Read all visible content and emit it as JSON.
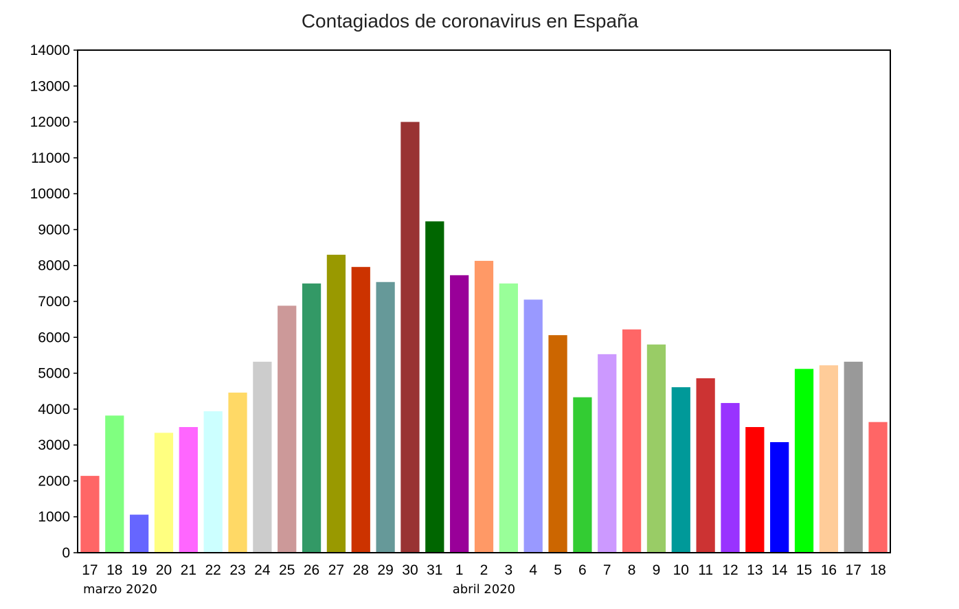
{
  "chart_data": {
    "type": "bar",
    "title": "Contagiados de coronavirus en España",
    "xlabel": "",
    "ylabel": "",
    "ylim": [
      0,
      14000
    ],
    "yticks": [
      0,
      1000,
      2000,
      3000,
      4000,
      5000,
      6000,
      7000,
      8000,
      9000,
      10000,
      11000,
      12000,
      13000,
      14000
    ],
    "grid": false,
    "legend": "none",
    "categories": [
      "17",
      "18",
      "19",
      "20",
      "21",
      "22",
      "23",
      "24",
      "25",
      "26",
      "27",
      "28",
      "29",
      "30",
      "31",
      "1",
      "2",
      "3",
      "4",
      "5",
      "6",
      "7",
      "8",
      "9",
      "10",
      "11",
      "12",
      "13",
      "14",
      "15",
      "16",
      "17",
      "18"
    ],
    "values": [
      2140,
      3820,
      1060,
      3340,
      3500,
      3940,
      4460,
      5320,
      6880,
      7500,
      8300,
      7960,
      7540,
      12000,
      9230,
      7730,
      8130,
      7500,
      7050,
      6060,
      4330,
      5530,
      6220,
      5800,
      4610,
      4860,
      4170,
      3500,
      3080,
      5120,
      5220,
      5320,
      3640
    ],
    "colors": [
      "#ff6666",
      "#80ff80",
      "#6666ff",
      "#ffff80",
      "#ff66ff",
      "#ccffff",
      "#ffd966",
      "#cccccc",
      "#cc9999",
      "#339966",
      "#999900",
      "#cc3300",
      "#669999",
      "#993333",
      "#006600",
      "#990099",
      "#ff9966",
      "#99ff99",
      "#9999ff",
      "#cc6600",
      "#33cc33",
      "#cc99ff",
      "#ff6666",
      "#99cc66",
      "#009999",
      "#cc3333",
      "#9933ff",
      "#ff0000",
      "#0000ff",
      "#00ff00",
      "#ffcc99",
      "#999999",
      "#ff6666"
    ],
    "month_labels": [
      {
        "text": "marzo 2020",
        "start_index": 0
      },
      {
        "text": "abril 2020",
        "start_index": 15
      }
    ]
  }
}
